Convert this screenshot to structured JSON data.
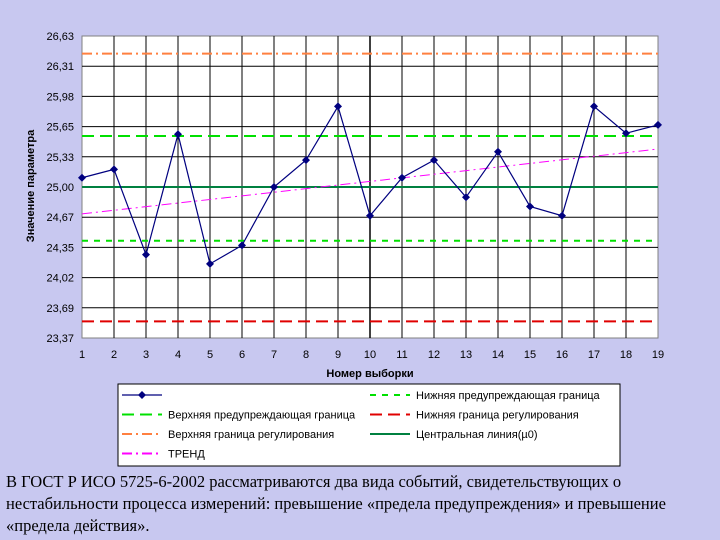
{
  "chart_data": {
    "type": "line",
    "xlabel": "Номер выборки",
    "ylabel": "Значение параметра",
    "x": [
      1,
      2,
      3,
      4,
      5,
      6,
      7,
      8,
      9,
      10,
      11,
      12,
      13,
      14,
      15,
      16,
      17,
      18,
      19
    ],
    "x_tick_labels": [
      "1",
      "2",
      "3",
      "4",
      "5",
      "6",
      "7",
      "8",
      "9",
      "10",
      "11",
      "12",
      "13",
      "14",
      "15",
      "16",
      "17",
      "18",
      "19"
    ],
    "y_tick_labels": [
      "26,63",
      "26,31",
      "25,98",
      "25,65",
      "25,33",
      "25,00",
      "24,67",
      "24,35",
      "24,02",
      "23,69",
      "23,37"
    ],
    "ylim": [
      23.37,
      26.63
    ],
    "grid": true,
    "legend_position": "bottom",
    "series": [
      {
        "name": "",
        "role": "data",
        "color": "#00007f",
        "values": [
          25.1,
          25.19,
          24.27,
          25.57,
          24.17,
          24.37,
          25.0,
          25.29,
          25.87,
          24.69,
          25.1,
          25.29,
          24.89,
          25.38,
          24.79,
          24.69,
          25.87,
          25.58,
          25.67
        ]
      },
      {
        "name": "Верхняя граница регулирования",
        "role": "hline",
        "value": 26.44,
        "color": "#ff8040",
        "dash": "dashdot"
      },
      {
        "name": "Верхняя предупреждающая граница",
        "role": "hline",
        "value": 25.55,
        "color": "#00e000",
        "dash": "dash"
      },
      {
        "name": "Центральная линия(µ0)",
        "role": "hline",
        "value": 25.0,
        "color": "#008040",
        "dash": "solid"
      },
      {
        "name": "Нижняя предупреждающая граница",
        "role": "hline",
        "value": 24.42,
        "color": "#00e000",
        "dash": "shortdash"
      },
      {
        "name": "Нижняя граница регулирования",
        "role": "hline",
        "value": 23.55,
        "color": "#e00000",
        "dash": "dash"
      },
      {
        "name": "ТРЕНД",
        "role": "trend",
        "values_endpoints": [
          24.71,
          25.41
        ],
        "color": "#ff00ff",
        "dash": "dashdot"
      }
    ],
    "legend": [
      {
        "name": "",
        "color": "#00007f",
        "style": "marker-line"
      },
      {
        "name": "Нижняя предупреждающая граница",
        "color": "#00e000",
        "style": "shortdash"
      },
      {
        "name": "Верхняя предупреждающая граница",
        "color": "#00e000",
        "style": "dash"
      },
      {
        "name": "Нижняя граница регулирования",
        "color": "#e00000",
        "style": "dash"
      },
      {
        "name": "Верхняя граница регулирования",
        "color": "#ff8040",
        "style": "dashdot"
      },
      {
        "name": "Центральная линия(µ0)",
        "color": "#008040",
        "style": "solid"
      },
      {
        "name": "ТРЕНД",
        "color": "#ff00ff",
        "style": "dashdot"
      }
    ]
  },
  "caption": "В ГОСТ Р ИСО 5725-6-2002 рассматриваются два вида событий, свидетельствующих о нестабильности процесса измерений: превышение «предела предупреждения» и превышение «предела действия»."
}
